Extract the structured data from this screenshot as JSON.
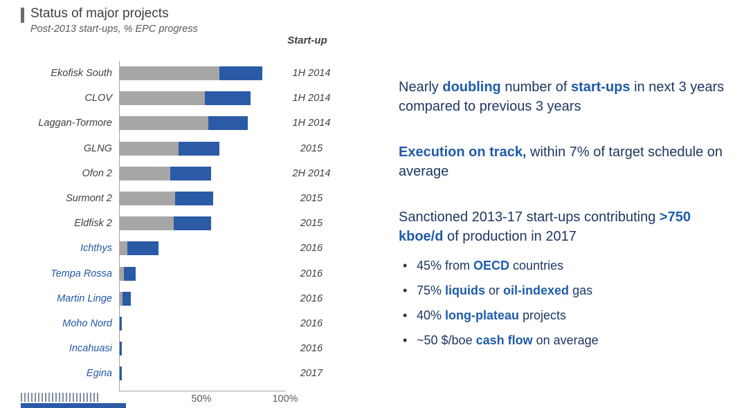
{
  "title": {
    "heading": "Status of major projects",
    "subtitle": "Post-2013 start-ups, % EPC progress"
  },
  "chart_data": {
    "type": "bar",
    "orientation": "horizontal",
    "title": "Status of major projects",
    "subtitle": "Post-2013 start-ups, % EPC progress",
    "xlabel": "% EPC progress",
    "xlim": [
      0,
      100
    ],
    "x_ticks": [
      "50%",
      "100%"
    ],
    "column_header": "Start-up",
    "colors": {
      "gray_segment": "#a6a6a6",
      "blue_segment": "#2b5aa7"
    },
    "projects": [
      {
        "name": "Ekofisk South",
        "gray": 61,
        "blue": 26,
        "startup": "1H 2014",
        "name_color": "dark"
      },
      {
        "name": "CLOV",
        "gray": 52,
        "blue": 28,
        "startup": "1H 2014",
        "name_color": "dark"
      },
      {
        "name": "Laggan-Tormore",
        "gray": 54,
        "blue": 24,
        "startup": "1H 2014",
        "name_color": "dark"
      },
      {
        "name": "GLNG",
        "gray": 36,
        "blue": 25,
        "startup": "2015",
        "name_color": "dark"
      },
      {
        "name": "Ofon 2",
        "gray": 31,
        "blue": 25,
        "startup": "2H 2014",
        "name_color": "dark"
      },
      {
        "name": "Surmont 2",
        "gray": 34,
        "blue": 23,
        "startup": "2015",
        "name_color": "dark"
      },
      {
        "name": "Eldfisk 2",
        "gray": 33,
        "blue": 23,
        "startup": "2015",
        "name_color": "dark"
      },
      {
        "name": "Ichthys",
        "gray": 5,
        "blue": 19,
        "startup": "2016",
        "name_color": "blue"
      },
      {
        "name": "Tempa Rossa",
        "gray": 3,
        "blue": 7,
        "startup": "2016",
        "name_color": "blue"
      },
      {
        "name": "Martin Linge",
        "gray": 2,
        "blue": 5,
        "startup": "2016",
        "name_color": "blue"
      },
      {
        "name": "Moho Nord",
        "gray": 0.5,
        "blue": 1,
        "startup": "2016",
        "name_color": "blue"
      },
      {
        "name": "Incahuasi",
        "gray": 0.5,
        "blue": 1,
        "startup": "2016",
        "name_color": "blue"
      },
      {
        "name": "Egina",
        "gray": 0.5,
        "blue": 1,
        "startup": "2017",
        "name_color": "blue"
      }
    ]
  },
  "insights": {
    "paragraphs": [
      {
        "segments": [
          {
            "text": "Nearly ",
            "bold": false
          },
          {
            "text": "doubling",
            "bold": true
          },
          {
            "text": " number of ",
            "bold": false
          },
          {
            "text": "start-ups",
            "bold": true
          },
          {
            "text": " in next 3 years compared to previous 3 years",
            "bold": false
          }
        ]
      },
      {
        "segments": [
          {
            "text": "Execution on track,",
            "bold": true
          },
          {
            "text": " within 7% of target schedule on average",
            "bold": false
          }
        ]
      },
      {
        "segments": [
          {
            "text": "Sanctioned 2013-17 start-ups contributing ",
            "bold": false
          },
          {
            "text": ">750 kboe/d",
            "bold": true
          },
          {
            "text": " of production in 2017",
            "bold": false
          }
        ]
      }
    ],
    "bullets": [
      {
        "segments": [
          {
            "text": "45% from ",
            "bold": false
          },
          {
            "text": "OECD",
            "bold": true
          },
          {
            "text": " countries",
            "bold": false
          }
        ]
      },
      {
        "segments": [
          {
            "text": "75% ",
            "bold": false
          },
          {
            "text": "liquids",
            "bold": true
          },
          {
            "text": " or ",
            "bold": false
          },
          {
            "text": "oil-indexed",
            "bold": true
          },
          {
            "text": " gas",
            "bold": false
          }
        ]
      },
      {
        "segments": [
          {
            "text": "40% ",
            "bold": false
          },
          {
            "text": "long-plateau",
            "bold": true
          },
          {
            "text": " projects",
            "bold": false
          }
        ]
      },
      {
        "segments": [
          {
            "text": "~50 $/boe ",
            "bold": false
          },
          {
            "text": "cash flow",
            "bold": true
          },
          {
            "text": " on average",
            "bold": false
          }
        ]
      }
    ]
  }
}
